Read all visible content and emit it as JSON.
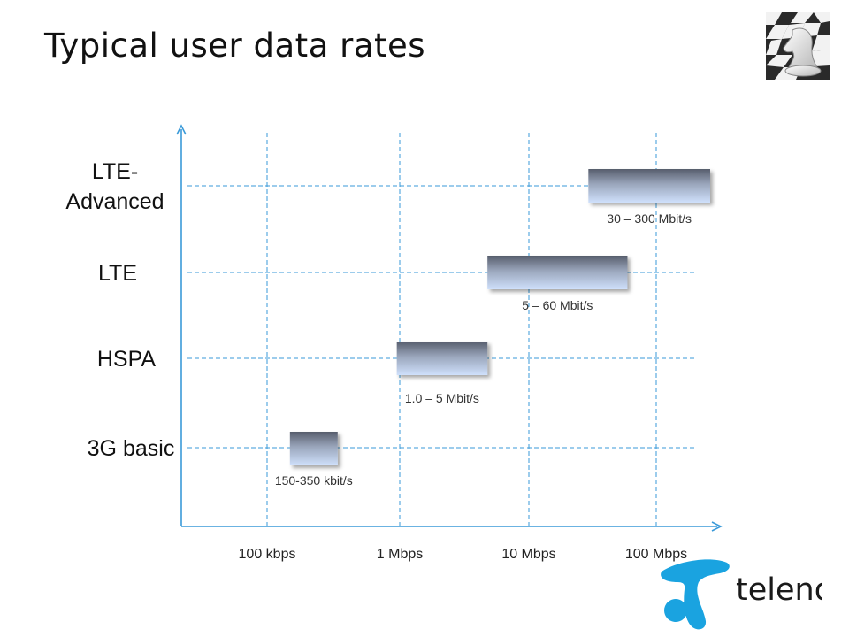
{
  "page": {
    "title": "Typical user data rates"
  },
  "chart_data": {
    "type": "bar",
    "orientation": "horizontal-range",
    "x_scale": "log",
    "xlim": [
      30000,
      200000000
    ],
    "categories": [
      "LTE-Advanced",
      "LTE",
      "HSPA",
      "3G basic"
    ],
    "category_lines": [
      [
        "LTE-",
        "Advanced"
      ],
      [
        "LTE"
      ],
      [
        "HSPA"
      ],
      [
        "3G basic"
      ]
    ],
    "x_ticks": [
      {
        "value": 100000,
        "label": "100 kbps"
      },
      {
        "value": 1000000,
        "label": "1 Mbps"
      },
      {
        "value": 10000000,
        "label": "10 Mbps"
      },
      {
        "value": 100000000,
        "label": "100 Mbps"
      }
    ],
    "ranges": [
      {
        "category": "LTE-Advanced",
        "low": 30000000,
        "high": 300000000,
        "label": "30 – 300 Mbit/s"
      },
      {
        "category": "LTE",
        "low": 5000000,
        "high": 60000000,
        "label": "5 – 60 Mbit/s"
      },
      {
        "category": "HSPA",
        "low": 1000000,
        "high": 5000000,
        "label": "1.0 – 5 Mbit/s"
      },
      {
        "category": "3G basic",
        "low": 150000,
        "high": 350000,
        "label": "150-350 kbit/s"
      }
    ],
    "grid": true,
    "colors": {
      "axis": "#3a9ad9",
      "grid": "#3a9ad9",
      "bar_top": "#5a6070",
      "bar_bottom": "#c9dcf8"
    }
  },
  "logo": {
    "text": "telenor",
    "color": "#1aa3e0"
  },
  "corner_icon": "chess-knight-icon"
}
